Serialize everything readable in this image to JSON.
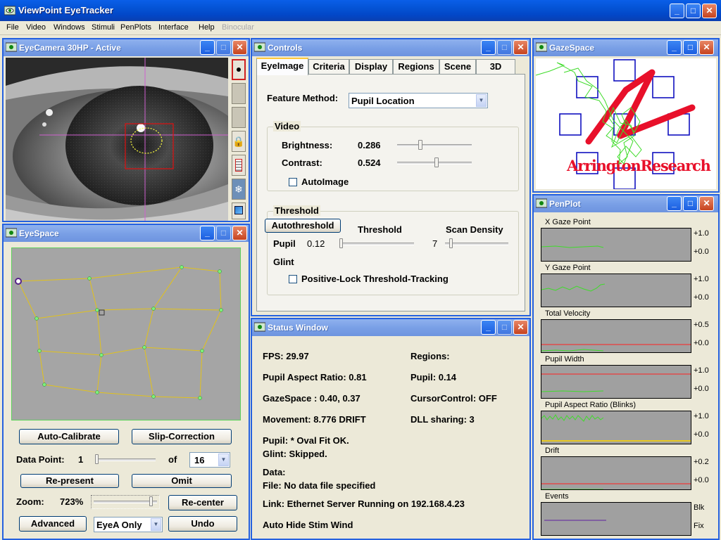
{
  "app": {
    "title": "ViewPoint EyeTracker"
  },
  "menu": [
    "File",
    "Video",
    "Windows",
    "Stimuli",
    "PenPlots",
    "Interface",
    "Help",
    "Binocular"
  ],
  "eyecamera": {
    "title": "EyeCamera 30HP - Active"
  },
  "eyespace": {
    "title": "EyeSpace",
    "auto_calibrate": "Auto-Calibrate",
    "slip_correction": "Slip-Correction",
    "data_point_label": "Data Point:",
    "data_point_value": "1",
    "of_label": "of",
    "of_value": "16",
    "represent": "Re-present",
    "omit": "Omit",
    "zoom_label": "Zoom:",
    "zoom_value": "723%",
    "recenter": "Re-center",
    "advanced": "Advanced",
    "eye_select": "EyeA Only",
    "undo": "Undo"
  },
  "controls": {
    "title": "Controls",
    "tabs": [
      "EyeImage",
      "Criteria",
      "Display",
      "Regions",
      "Scene",
      "3D"
    ],
    "feature_method_label": "Feature Method:",
    "feature_method_value": "Pupil Location",
    "video_group": "Video",
    "brightness_label": "Brightness:",
    "brightness_value": "0.286",
    "contrast_label": "Contrast:",
    "contrast_value": "0.524",
    "autoimage_label": "AutoImage",
    "threshold_group": "Threshold",
    "autothreshold": "Autothreshold",
    "threshold_label": "Threshold",
    "scan_density_label": "Scan Density",
    "pupil_label": "Pupil",
    "pupil_threshold": "0.12",
    "scan_density_value": "7",
    "glint_label": "Glint",
    "positive_lock_label": "Positive-Lock Threshold-Tracking"
  },
  "status": {
    "title": "Status Window",
    "fps": "FPS:   29.97",
    "regions": "Regions:",
    "pupil_aspect": "Pupil Aspect Ratio:   0.81",
    "pupil": "Pupil:   0.14",
    "gazespace": "GazeSpace :   0.40,  0.37",
    "cursor_control": "CursorControl:  OFF",
    "movement": "Movement:  8.776 DRIFT",
    "dll": "DLL sharing: 3",
    "pupil_fit": "Pupil:    * Oval Fit OK.",
    "glint_skip": "Glint:      Skipped.",
    "data": "Data:",
    "file": "File:     No data file specified",
    "link": "Link:  Ethernet Server Running on 192.168.4.23",
    "auto_hide": "Auto Hide Stim Wind"
  },
  "gazespace": {
    "title": "GazeSpace",
    "brand": "ArringtonResearch"
  },
  "penplot": {
    "title": "PenPlot",
    "plots": [
      {
        "label": "X Gaze Point",
        "top": "+1.0",
        "bottom": "+0.0"
      },
      {
        "label": "Y Gaze Point",
        "top": "+1.0",
        "bottom": "+0.0"
      },
      {
        "label": "Total Velocity",
        "top": "+0.5",
        "bottom": "+0.0"
      },
      {
        "label": "Pupil Width",
        "top": "+1.0",
        "bottom": "+0.0"
      },
      {
        "label": "Pupil Aspect Ratio (Blinks)",
        "top": "+1.0",
        "bottom": "+0.0"
      },
      {
        "label": "Drift",
        "top": "+0.2",
        "bottom": "+0.0"
      },
      {
        "label": "Events",
        "top": "Blk",
        "bottom": "Fix"
      }
    ]
  },
  "colors": {
    "titlebar": "#0453d4",
    "mdi_title": "#7aa0e6",
    "plot_bg": "#a0a0a0",
    "trace_green": "#3fdc2a",
    "trace_red": "#ff2020",
    "eyespace_bg": "#a5a5a5",
    "grid_line": "#e2c21a",
    "calib_box": "#1010c0",
    "brand_red": "#e8102a"
  }
}
